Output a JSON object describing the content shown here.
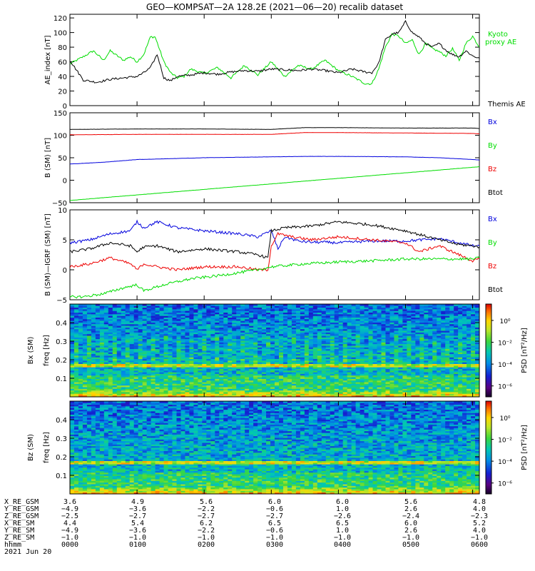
{
  "title": "GEO—KOMPSAT—2A 128.2E (2021—06—20) recalib dataset",
  "colors": {
    "black": "#000000",
    "green": "#00dd00",
    "red": "#ee0000",
    "blue": "#0000dd"
  },
  "chart_data": [
    {
      "id": "ae",
      "type": "line",
      "ylabel": "AE_index [nT]",
      "ylim": [
        0,
        125
      ],
      "yticks": [
        0,
        20,
        40,
        60,
        80,
        100,
        120
      ],
      "xlim_hours": [
        0,
        6.1
      ],
      "legend": [
        {
          "text": "Kyoto proxy AE",
          "color": "#00dd00"
        },
        {
          "text": "Themis AE",
          "color": "#000000"
        }
      ],
      "series": [
        {
          "name": "Kyoto proxy AE",
          "color": "#00dd00",
          "x": [
            0,
            0.2,
            0.35,
            0.5,
            0.6,
            0.8,
            0.9,
            1.0,
            1.1,
            1.2,
            1.27,
            1.4,
            1.5,
            1.6,
            1.7,
            1.8,
            2.0,
            2.2,
            2.4,
            2.6,
            2.8,
            3.0,
            3.2,
            3.4,
            3.6,
            3.8,
            4.0,
            4.2,
            4.4,
            4.5,
            4.6,
            4.7,
            4.8,
            4.9,
            5.0,
            5.1,
            5.2,
            5.3,
            5.4,
            5.5,
            5.6,
            5.7,
            5.8,
            5.9,
            6.0,
            6.1
          ],
          "y": [
            57,
            67,
            75,
            62,
            75,
            62,
            67,
            60,
            70,
            94,
            94,
            60,
            45,
            38,
            40,
            50,
            44,
            52,
            38,
            55,
            42,
            60,
            40,
            55,
            50,
            62,
            48,
            40,
            30,
            30,
            50,
            80,
            98,
            95,
            85,
            90,
            70,
            85,
            78,
            74,
            68,
            78,
            62,
            85,
            95,
            80
          ]
        },
        {
          "name": "Themis AE",
          "color": "#000000",
          "x": [
            0,
            0.2,
            0.4,
            0.6,
            0.8,
            1.0,
            1.1,
            1.2,
            1.3,
            1.4,
            1.5,
            1.6,
            1.8,
            2.0,
            2.2,
            2.4,
            2.6,
            2.8,
            3.0,
            3.2,
            3.4,
            3.6,
            3.8,
            4.0,
            4.2,
            4.4,
            4.5,
            4.6,
            4.7,
            4.8,
            4.9,
            5.0,
            5.1,
            5.2,
            5.3,
            5.4,
            5.5,
            5.6,
            5.7,
            5.8,
            5.9,
            6.0,
            6.1
          ],
          "y": [
            62,
            35,
            32,
            36,
            38,
            40,
            45,
            52,
            70,
            38,
            34,
            40,
            42,
            45,
            43,
            46,
            48,
            47,
            50,
            49,
            48,
            50,
            48,
            45,
            50,
            46,
            45,
            58,
            90,
            98,
            100,
            115,
            100,
            94,
            85,
            80,
            85,
            76,
            70,
            67,
            75,
            68,
            65
          ]
        }
      ]
    },
    {
      "id": "b",
      "type": "line",
      "ylabel": "B (SM) [nT]",
      "ylim": [
        -50,
        150
      ],
      "yticks": [
        -50,
        0,
        50,
        100,
        150
      ],
      "xlim_hours": [
        0,
        6.1
      ],
      "legend": [
        {
          "text": "Bx",
          "color": "#0000dd"
        },
        {
          "text": "By",
          "color": "#00dd00"
        },
        {
          "text": "Bz",
          "color": "#ee0000"
        },
        {
          "text": "Btot",
          "color": "#000000"
        }
      ],
      "series": [
        {
          "name": "Btot",
          "color": "#000000",
          "x": [
            0,
            1,
            2,
            3,
            3.5,
            4,
            5,
            6,
            6.1
          ],
          "y": [
            113,
            114,
            114,
            113,
            117,
            117,
            116,
            116,
            115
          ]
        },
        {
          "name": "Bz",
          "color": "#ee0000",
          "x": [
            0,
            1,
            2,
            3,
            3.5,
            4,
            5,
            6,
            6.1
          ],
          "y": [
            101,
            102,
            102,
            102,
            106,
            106,
            105,
            104,
            103
          ]
        },
        {
          "name": "Bx",
          "color": "#0000dd",
          "x": [
            0,
            0.5,
            1,
            2,
            3,
            3.5,
            4,
            5,
            5.5,
            6,
            6.1
          ],
          "y": [
            36,
            40,
            46,
            50,
            52,
            53,
            53,
            52,
            50,
            46,
            45
          ]
        },
        {
          "name": "By",
          "color": "#00dd00",
          "x": [
            0,
            6.1
          ],
          "y": [
            -45,
            30
          ]
        }
      ]
    },
    {
      "id": "db",
      "type": "line",
      "ylabel": "B (SM)—IGRF (SM) [nT]",
      "ylim": [
        -5,
        10
      ],
      "yticks": [
        -5,
        0,
        5,
        10
      ],
      "xlim_hours": [
        0,
        6.1
      ],
      "legend": [
        {
          "text": "Bx",
          "color": "#0000dd"
        },
        {
          "text": "By",
          "color": "#00dd00"
        },
        {
          "text": "Bz",
          "color": "#ee0000"
        },
        {
          "text": "Btot",
          "color": "#000000"
        }
      ],
      "series": [
        {
          "name": "Bx",
          "color": "#0000dd",
          "x": [
            0,
            0.3,
            0.6,
            0.9,
            1.0,
            1.1,
            1.3,
            1.6,
            2.0,
            2.5,
            2.8,
            3.0,
            3.1,
            3.2,
            3.4,
            3.6,
            3.8,
            4.0,
            4.5,
            5.0,
            5.5,
            5.8,
            6.0,
            6.1
          ],
          "y": [
            4.5,
            5.0,
            6.0,
            6.5,
            8.0,
            7.0,
            8.0,
            7.0,
            6.5,
            6.0,
            5.5,
            6.5,
            3.5,
            5.5,
            4.8,
            4.6,
            4.6,
            4.5,
            4.8,
            4.8,
            5.2,
            4.5,
            4.0,
            4.0
          ]
        },
        {
          "name": "Btot",
          "color": "#000000",
          "x": [
            0,
            0.3,
            0.6,
            0.9,
            1.0,
            1.1,
            1.3,
            1.6,
            2.0,
            2.5,
            2.8,
            2.95,
            3.0,
            3.2,
            3.6,
            4.0,
            4.5,
            5.0,
            5.5,
            5.8,
            6.0,
            6.1
          ],
          "y": [
            3.0,
            3.5,
            4.5,
            4.0,
            3.0,
            3.8,
            4.0,
            3.0,
            3.5,
            3.0,
            2.5,
            2.0,
            6.5,
            7.0,
            7.3,
            8.0,
            7.5,
            6.5,
            5.0,
            4.2,
            4.0,
            3.8
          ]
        },
        {
          "name": "Bz",
          "color": "#ee0000",
          "x": [
            0,
            0.3,
            0.6,
            0.9,
            1.0,
            1.1,
            1.3,
            1.6,
            2.0,
            2.5,
            2.8,
            2.95,
            3.0,
            3.1,
            3.3,
            3.6,
            4.0,
            4.5,
            5.0,
            5.2,
            5.5,
            5.8,
            6.0,
            6.1
          ],
          "y": [
            0.5,
            1.0,
            2.0,
            1.0,
            0,
            1.0,
            0.5,
            0,
            0.5,
            0.5,
            0,
            0,
            4.0,
            6.0,
            5.5,
            5.0,
            5.5,
            5.0,
            4.5,
            3.0,
            4.0,
            2.5,
            1.5,
            1.8
          ]
        },
        {
          "name": "By",
          "color": "#00dd00",
          "x": [
            0,
            0.2,
            0.5,
            0.8,
            1.0,
            1.1,
            1.4,
            1.8,
            2.2,
            2.5,
            2.8,
            3.0,
            3.5,
            4.0,
            4.5,
            5.0,
            5.5,
            6.0,
            6.1
          ],
          "y": [
            -4.5,
            -4.5,
            -4.0,
            -3.0,
            -2.5,
            -3.5,
            -2.5,
            -1.5,
            -1.0,
            -0.5,
            0,
            0.5,
            1.0,
            1.3,
            1.5,
            1.8,
            1.8,
            1.8,
            2.0
          ]
        }
      ]
    },
    {
      "id": "psd_bx",
      "type": "heatmap",
      "ylabel": "Bx (SM) freq [Hz]",
      "ylim": [
        0,
        0.5
      ],
      "yticks": [
        0.1,
        0.2,
        0.3,
        0.4
      ],
      "colorbar_label": "PSD [nT²/Hz]",
      "colorbar_ticks": [
        "10⁰",
        "10⁻²",
        "10⁻⁴",
        "10⁻⁶"
      ],
      "colorbar_range_log10": [
        -7,
        1.5
      ]
    },
    {
      "id": "psd_bz",
      "type": "heatmap",
      "ylabel": "Bz (SM) freq [Hz]",
      "ylim": [
        0,
        0.5
      ],
      "yticks": [
        0.1,
        0.2,
        0.3,
        0.4
      ],
      "colorbar_label": "PSD [nT²/Hz]",
      "colorbar_ticks": [
        "10⁰",
        "10⁻²",
        "10⁻⁴",
        "10⁻⁶"
      ],
      "colorbar_range_log10": [
        -7,
        1.5
      ]
    }
  ],
  "ephemeris": {
    "rows": [
      {
        "label": "X_RE_GSM",
        "values": [
          "3.6",
          "4.9",
          "5.6",
          "6.0",
          "6.0",
          "5.6",
          "4.8"
        ]
      },
      {
        "label": "Y_RE_GSM",
        "values": [
          "−4.9",
          "−3.6",
          "−2.2",
          "−0.6",
          "1.0",
          "2.6",
          "4.0"
        ]
      },
      {
        "label": "Z_RE_GSM",
        "values": [
          "−2.5",
          "−2.7",
          "−2.7",
          "−2.7",
          "−2.6",
          "−2.4",
          "−2.3"
        ]
      },
      {
        "label": "X_RE_SM",
        "values": [
          "4.4",
          "5.4",
          "6.2",
          "6.5",
          "6.5",
          "6.0",
          "5.2"
        ]
      },
      {
        "label": "Y_RE_SM",
        "values": [
          "−4.9",
          "−3.6",
          "−2.2",
          "−0.6",
          "1.0",
          "2.6",
          "4.0"
        ]
      },
      {
        "label": "Z_RE_SM",
        "values": [
          "−1.0",
          "−1.0",
          "−1.0",
          "−1.0",
          "−1.0",
          "−1.0",
          "−1.0"
        ]
      },
      {
        "label": "hhmm",
        "values": [
          "0000",
          "0100",
          "0200",
          "0300",
          "0400",
          "0500",
          "0600"
        ]
      }
    ],
    "date": "2021 Jun 20"
  }
}
